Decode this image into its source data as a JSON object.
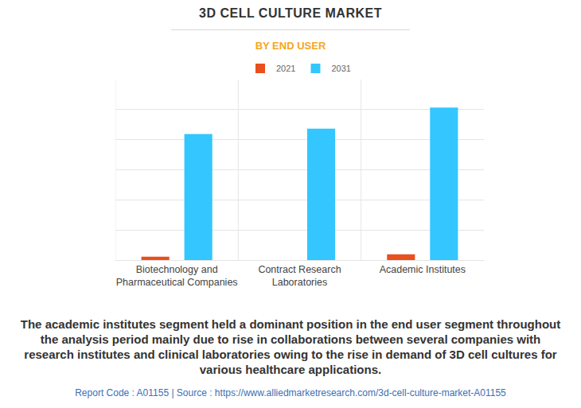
{
  "chart_data": {
    "type": "bar",
    "title": "3D CELL CULTURE MARKET",
    "subtitle": "BY END USER",
    "categories": [
      "Biotechnology and Pharmaceutical Companies",
      "Contract Research Laboratories",
      "Academic Institutes"
    ],
    "series": [
      {
        "name": "2021",
        "color": "#e8501e",
        "values": [
          0.11,
          0,
          0.19
        ]
      },
      {
        "name": "2031",
        "color": "#33c6ff",
        "values": [
          4.19,
          4.37,
          5.07
        ]
      }
    ],
    "ylim": [
      0,
      6
    ],
    "yticks": [
      0,
      1,
      2,
      3,
      4,
      5,
      6
    ],
    "grid": true,
    "legend": "top",
    "tick_labels": "x",
    "data_labels": false,
    "caption": "The academic institutes segment held a dominant position in the end user segment throughout the analysis period mainly due to rise in collaborations between several companies with research institutes and clinical laboratories owing to the rise in demand of 3D cell cultures for various healthcare applications.",
    "source_note": "Report Code : A01155  |  Source : https://www.alliedmarketresearch.com/3d-cell-culture-market-A01155"
  }
}
